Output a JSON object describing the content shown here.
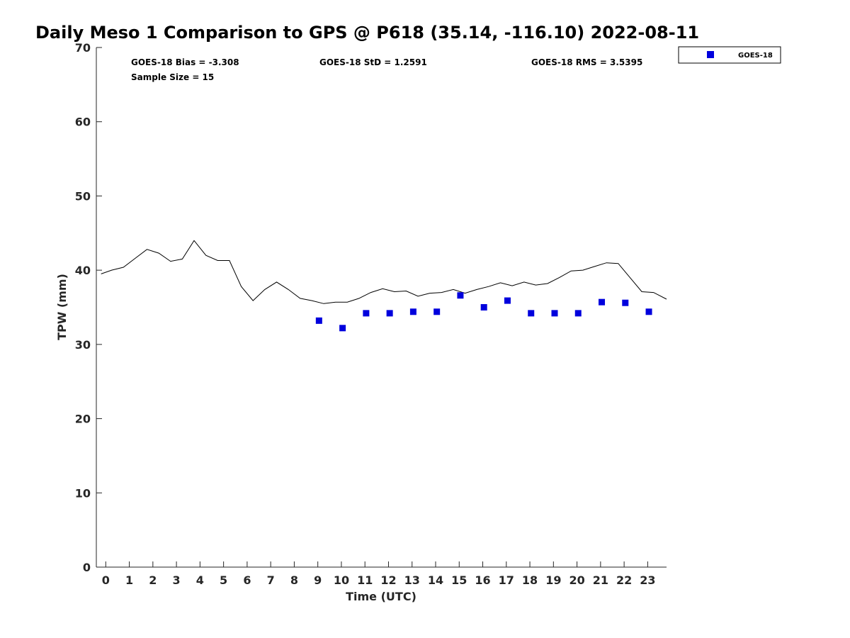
{
  "chart_data": {
    "type": "scatter",
    "title": "Daily Meso 1 Comparison to GPS @ P618 (35.14, -116.10) 2022-08-11",
    "xlabel": "Time (UTC)",
    "ylabel": "TPW (mm)",
    "xlim": [
      -0.4,
      23.8
    ],
    "ylim": [
      0,
      70
    ],
    "xticks": [
      0,
      1,
      2,
      3,
      4,
      5,
      6,
      7,
      8,
      9,
      10,
      11,
      12,
      13,
      14,
      15,
      16,
      17,
      18,
      19,
      20,
      21,
      22,
      23
    ],
    "yticks": [
      0,
      10,
      20,
      30,
      40,
      50,
      60,
      70
    ],
    "stats": {
      "bias": "GOES-18 Bias = -3.308",
      "std": "GOES-18 StD = 1.2591",
      "rms": "GOES-18 RMS = 3.5395",
      "sample_size": "Sample Size = 15"
    },
    "legend": {
      "position": "top-right",
      "entries": [
        "GOES-18"
      ]
    },
    "series": [
      {
        "name": "GPS",
        "kind": "line",
        "color": "#000000",
        "x": [
          -0.2,
          0.25,
          0.75,
          1.25,
          1.75,
          2.25,
          2.75,
          3.25,
          3.75,
          4.25,
          4.75,
          5.25,
          5.75,
          6.25,
          6.75,
          7.25,
          7.75,
          8.25,
          8.75,
          9.25,
          9.75,
          10.25,
          10.75,
          11.25,
          11.75,
          12.25,
          12.75,
          13.25,
          13.75,
          14.25,
          14.75,
          15.25,
          15.75,
          16.25,
          16.75,
          17.25,
          17.75,
          18.25,
          18.75,
          19.25,
          19.75,
          20.25,
          20.75,
          21.25,
          21.75,
          22.25,
          22.75,
          23.25,
          23.8
        ],
        "y": [
          39.5,
          40.0,
          40.4,
          41.6,
          42.8,
          42.3,
          41.2,
          41.5,
          44.0,
          42.0,
          41.3,
          41.3,
          37.8,
          35.9,
          37.4,
          38.4,
          37.4,
          36.2,
          35.9,
          35.5,
          35.7,
          35.7,
          36.2,
          37.0,
          37.5,
          37.1,
          37.2,
          36.5,
          36.9,
          37.0,
          37.4,
          36.9,
          37.4,
          37.8,
          38.3,
          37.9,
          38.4,
          38.0,
          38.2,
          39.0,
          39.9,
          40.0,
          40.5,
          41.0,
          40.9,
          39.0,
          37.1,
          37.0,
          36.1
        ]
      },
      {
        "name": "GOES-18",
        "kind": "scatter",
        "color": "#0000dd",
        "marker": "square",
        "x": [
          9.05,
          10.05,
          11.05,
          12.05,
          13.05,
          14.05,
          15.05,
          16.05,
          17.05,
          18.05,
          19.05,
          20.05,
          21.05,
          22.05,
          23.05
        ],
        "y": [
          33.2,
          32.2,
          34.2,
          34.2,
          34.4,
          34.4,
          36.6,
          35.0,
          35.9,
          34.2,
          34.2,
          34.2,
          35.7,
          35.6,
          34.4
        ]
      }
    ]
  }
}
